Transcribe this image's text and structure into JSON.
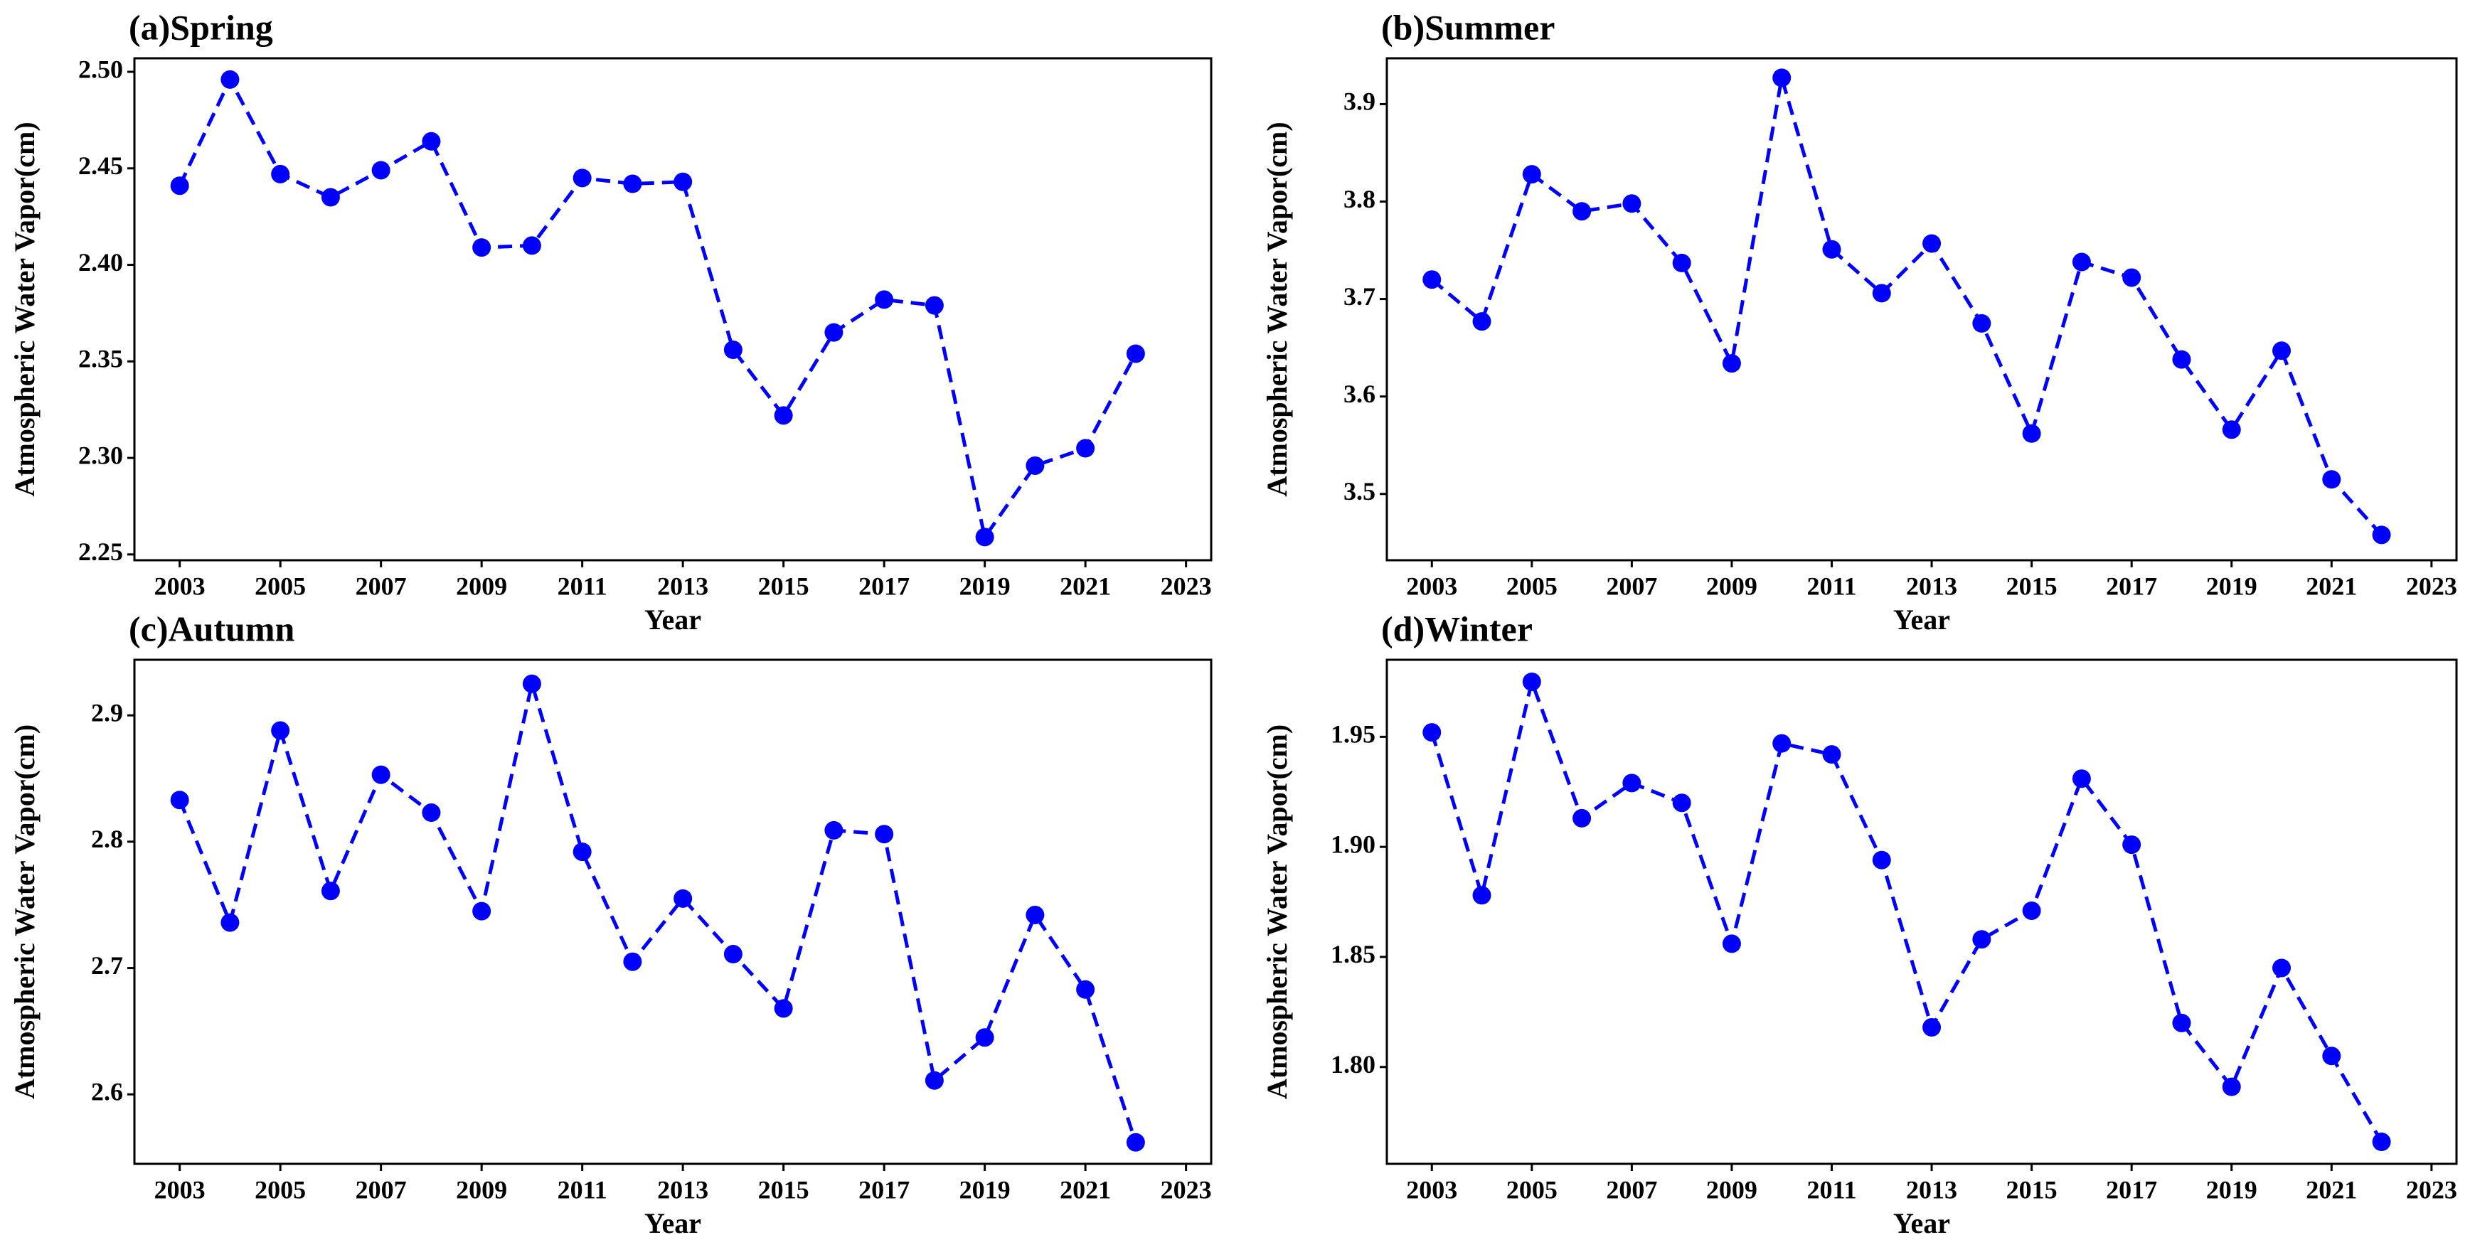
{
  "chart_data": [
    {
      "type": "line",
      "title": "(a)Spring",
      "xlabel": "Year",
      "ylabel": "Atmospheric Water Vapor(cm)",
      "x": [
        2003,
        2004,
        2005,
        2006,
        2007,
        2008,
        2009,
        2010,
        2011,
        2012,
        2013,
        2014,
        2015,
        2016,
        2017,
        2018,
        2019,
        2020,
        2021,
        2022
      ],
      "values": [
        2.441,
        2.496,
        2.447,
        2.435,
        2.449,
        2.464,
        2.409,
        2.41,
        2.445,
        2.442,
        2.443,
        2.356,
        2.322,
        2.365,
        2.382,
        2.379,
        2.259,
        2.296,
        2.305,
        2.354
      ],
      "color": "#0000ff",
      "xlim": [
        2002.1,
        2023.5
      ],
      "xticks": [
        2003,
        2005,
        2007,
        2009,
        2011,
        2013,
        2015,
        2017,
        2019,
        2021,
        2023
      ],
      "ylim": [
        2.247,
        2.507
      ],
      "yticks": [
        2.25,
        {
          "value": 2.3,
          "label": "2.30"
        },
        2.35,
        {
          "value": 2.4,
          "label": "2.40"
        },
        2.45,
        {
          "value": 2.5,
          "label": "2.50"
        }
      ]
    },
    {
      "type": "line",
      "title": "(b)Summer",
      "xlabel": "Year",
      "ylabel": "Atmospheric Water Vapor(cm)",
      "x": [
        2003,
        2004,
        2005,
        2006,
        2007,
        2008,
        2009,
        2010,
        2011,
        2012,
        2013,
        2014,
        2015,
        2016,
        2017,
        2018,
        2019,
        2020,
        2021,
        2022
      ],
      "values": [
        3.72,
        3.677,
        3.828,
        3.79,
        3.798,
        3.737,
        3.634,
        3.927,
        3.751,
        3.706,
        3.757,
        3.675,
        3.562,
        3.738,
        3.722,
        3.638,
        3.566,
        3.647,
        3.515,
        3.458
      ],
      "color": "#0000ff",
      "xlim": [
        2002.1,
        2023.5
      ],
      "xticks": [
        2003,
        2005,
        2007,
        2009,
        2011,
        2013,
        2015,
        2017,
        2019,
        2021,
        2023
      ],
      "ylim": [
        3.432,
        3.947
      ],
      "yticks": [
        3.5,
        3.6,
        3.7,
        3.8,
        3.9
      ]
    },
    {
      "type": "line",
      "title": "(c)Autumn",
      "xlabel": "Year",
      "ylabel": "Atmospheric Water Vapor(cm)",
      "x": [
        2003,
        2004,
        2005,
        2006,
        2007,
        2008,
        2009,
        2010,
        2011,
        2012,
        2013,
        2014,
        2015,
        2016,
        2017,
        2018,
        2019,
        2020,
        2021,
        2022
      ],
      "values": [
        2.833,
        2.736,
        2.888,
        2.761,
        2.853,
        2.823,
        2.745,
        2.925,
        2.792,
        2.705,
        2.755,
        2.711,
        2.668,
        2.809,
        2.806,
        2.611,
        2.645,
        2.742,
        2.683,
        2.562
      ],
      "color": "#0000ff",
      "xlim": [
        2002.1,
        2023.5
      ],
      "xticks": [
        2003,
        2005,
        2007,
        2009,
        2011,
        2013,
        2015,
        2017,
        2019,
        2021,
        2023
      ],
      "ylim": [
        2.545,
        2.944
      ],
      "yticks": [
        2.6,
        2.7,
        2.8,
        2.9
      ]
    },
    {
      "type": "line",
      "title": "(d)Winter",
      "xlabel": "Year",
      "ylabel": "Atmospheric Water Vapor(cm)",
      "x": [
        2003,
        2004,
        2005,
        2006,
        2007,
        2008,
        2009,
        2010,
        2011,
        2012,
        2013,
        2014,
        2015,
        2016,
        2017,
        2018,
        2019,
        2020,
        2021,
        2022
      ],
      "values": [
        1.952,
        1.878,
        1.975,
        1.913,
        1.929,
        1.92,
        1.856,
        1.947,
        1.942,
        1.894,
        1.818,
        1.858,
        1.871,
        1.931,
        1.901,
        1.82,
        1.791,
        1.845,
        1.805,
        1.766
      ],
      "color": "#0000ff",
      "xlim": [
        2002.1,
        2023.5
      ],
      "xticks": [
        2003,
        2005,
        2007,
        2009,
        2011,
        2013,
        2015,
        2017,
        2019,
        2021,
        2023
      ],
      "ylim": [
        1.756,
        1.985
      ],
      "yticks": [
        {
          "value": 1.8,
          "label": "1.80"
        },
        1.85,
        {
          "value": 1.9,
          "label": "1.90"
        },
        1.95
      ]
    }
  ]
}
